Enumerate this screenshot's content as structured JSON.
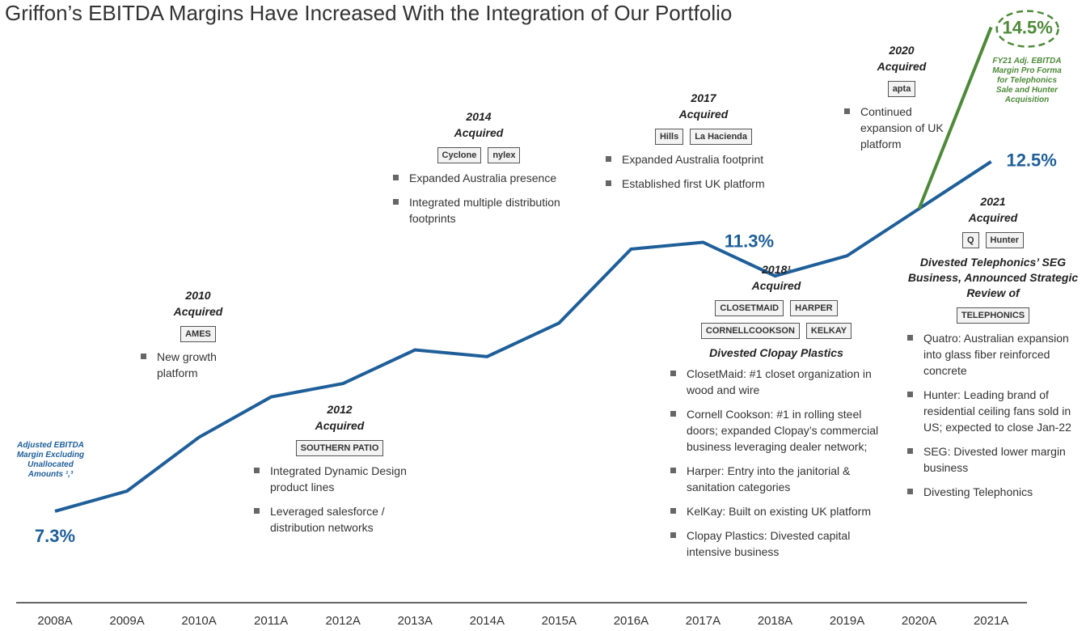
{
  "chart_data": {
    "type": "line",
    "title": "Griffon’s EBITDA Margins Have Increased With the Integration of Our Portfolio",
    "categories": [
      "2008A",
      "2009A",
      "2010A",
      "2011A",
      "2012A",
      "2013A",
      "2014A",
      "2015A",
      "2016A",
      "2017A",
      "2018A",
      "2019A",
      "2020A",
      "2021A"
    ],
    "series": [
      {
        "color": "#1f5f99",
        "values": [
          7.3,
          7.6,
          8.4,
          9.0,
          9.2,
          9.7,
          9.6,
          10.1,
          11.2,
          11.3,
          10.8,
          11.1,
          11.8,
          12.5
        ],
        "value_labels": [
          "7.3%",
          null,
          null,
          null,
          null,
          null,
          null,
          null,
          null,
          "11.3%",
          null,
          null,
          null,
          "12.5%"
        ]
      },
      {
        "color": "#4e8a3a",
        "values": [
          null,
          null,
          null,
          null,
          null,
          null,
          null,
          null,
          null,
          null,
          null,
          null,
          11.8,
          14.5
        ],
        "value_labels": [
          null,
          null,
          null,
          null,
          null,
          null,
          null,
          null,
          null,
          null,
          null,
          null,
          null,
          "14.5%"
        ]
      }
    ],
    "ylim": [
      6,
      14.8
    ],
    "left_note": [
      "Adjusted EBITDA",
      "Margin Excluding",
      "Unallocated",
      "Amounts ¹,³"
    ],
    "right_note": [
      "FY21 Adj. EBITDA",
      "Margin Pro Forma",
      "for Telephonics",
      "Sale and Hunter",
      "Acquisition"
    ],
    "annotations": [
      {
        "heading": "2010",
        "subheading": "Acquired",
        "logos": [
          "AMES"
        ],
        "bullets": [
          "New growth platform"
        ]
      },
      {
        "heading": "2012",
        "subheading": "Acquired",
        "logos": [
          "SOUTHERN PATIO"
        ],
        "bullets": [
          "Integrated Dynamic Design product lines",
          "Leveraged salesforce / distribution networks"
        ]
      },
      {
        "heading": "2014",
        "subheading": "Acquired",
        "logos": [
          "Cyclone",
          "nylex"
        ],
        "bullets": [
          "Expanded Australia presence",
          "Integrated multiple distribution footprints"
        ]
      },
      {
        "heading": "2017",
        "subheading": "Acquired",
        "logos": [
          "Hills",
          "La Hacienda"
        ],
        "bullets": [
          "Expanded Australia footprint",
          "Established first UK platform"
        ]
      },
      {
        "heading": "2020",
        "subheading": "Acquired",
        "logos": [
          "apta"
        ],
        "bullets": [
          "Continued expansion of UK platform"
        ]
      },
      {
        "heading": "2018¹",
        "subheading": "Acquired",
        "logos": [
          "CLOSETMAID",
          "HARPER",
          "CORNELLCOOKSON",
          "KELKAY"
        ],
        "note": "Divested Clopay Plastics",
        "bullets": [
          "ClosetMaid: #1 closet organization in wood and wire",
          "Cornell Cookson: #1 in rolling steel doors; expanded Clopay’s commercial business leveraging dealer network;",
          "Harper: Entry into the janitorial & sanitation categories",
          "KelKay: Built on existing UK platform",
          "Clopay Plastics: Divested capital intensive business"
        ]
      },
      {
        "heading": "2021",
        "subheading": "Acquired",
        "logos": [
          "Q",
          "Hunter"
        ],
        "note": "Divested Telephonics’ SEG Business, Announced Strategic Review of",
        "note_logos": [
          "TELEPHONICS"
        ],
        "bullets": [
          "Quatro: Australian expansion into glass fiber reinforced concrete",
          "Hunter: Leading brand of residential ceiling fans sold in US; expected to close Jan-22",
          "SEG: Divested lower margin business",
          "Divesting Telephonics"
        ]
      }
    ]
  }
}
